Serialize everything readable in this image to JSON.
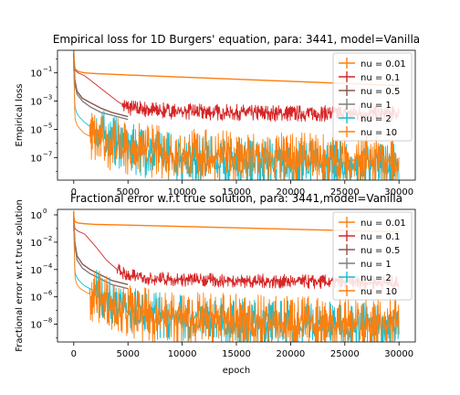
{
  "chart_data": [
    {
      "type": "line",
      "title": "Empirical loss for 1D Burgers' equation, para: 3441, model=Vanilla",
      "xlabel": "",
      "ylabel": "Empirical loss",
      "yscale": "log",
      "xlim": [
        -1500,
        31500
      ],
      "ylim_exp": [
        -8.6,
        0.6
      ],
      "x_ticks": [
        0,
        5000,
        10000,
        15000,
        20000,
        25000,
        30000
      ],
      "x_tick_labels": [
        "0",
        "5000",
        "10000",
        "15000",
        "20000",
        "25000",
        "30000"
      ],
      "y_ticks_exp": [
        -7,
        -5,
        -3,
        -1
      ],
      "y_tick_labels": [
        "10",
        "10",
        "10",
        "10"
      ],
      "y_tick_exps": [
        "−7",
        "−5",
        "−3",
        "−1"
      ],
      "legend": "upper right",
      "grid": false,
      "series": [
        {
          "name": "nu = 0.01",
          "color": "#ff7f0e",
          "x": [
            0,
            100,
            400,
            1000,
            2000,
            5000,
            10000,
            15000,
            20000,
            25000,
            30000
          ],
          "log10_y": [
            0.3,
            -0.7,
            -0.9,
            -1.0,
            -1.05,
            -1.15,
            -1.3,
            -1.45,
            -1.6,
            -1.75,
            -1.9
          ]
        },
        {
          "name": "nu = 0.1",
          "color": "#d62728",
          "x": [
            0,
            100,
            400,
            1000,
            2000,
            3000,
            4000,
            5000,
            8000,
            12000,
            16000,
            20000,
            25000,
            30000
          ],
          "log10_y": [
            0.2,
            -0.8,
            -1.0,
            -1.2,
            -1.8,
            -2.4,
            -3.0,
            -3.5,
            -3.7,
            -3.8,
            -3.85,
            -3.9,
            -3.9,
            -3.95
          ],
          "noise_from": 4500,
          "noise": 0.5
        },
        {
          "name": "nu = 0.5",
          "color": "#8c564b",
          "x": [
            0,
            100,
            300,
            800,
            1500,
            2500,
            3500,
            4500,
            5000
          ],
          "log10_y": [
            0.0,
            -1.5,
            -2.3,
            -2.8,
            -3.1,
            -3.5,
            -3.8,
            -4.0,
            -4.1
          ]
        },
        {
          "name": "nu = 1",
          "color": "#7f7f7f",
          "x": [
            0,
            100,
            300,
            800,
            1500,
            2500,
            3500,
            4500,
            5000
          ],
          "log10_y": [
            0.0,
            -1.8,
            -2.5,
            -3.0,
            -3.4,
            -3.8,
            -4.0,
            -4.2,
            -4.3
          ]
        },
        {
          "name": "nu = 2",
          "color": "#17becf",
          "x": [
            0,
            100,
            300,
            600,
            1000,
            2000,
            3000,
            4000,
            5000,
            7000,
            10000,
            13000,
            16000,
            20000,
            25000,
            30000
          ],
          "log10_y": [
            -0.5,
            -3.4,
            -3.9,
            -4.2,
            -4.5,
            -5.1,
            -5.6,
            -6.0,
            -6.4,
            -6.8,
            -7.1,
            -7.3,
            -7.45,
            -7.55,
            -7.65,
            -7.7
          ],
          "noise_from": 2000,
          "noise": 1.5
        },
        {
          "name": "nu = 10",
          "color": "#ff7f0e",
          "x": [
            0,
            100,
            300,
            600,
            1000,
            2000,
            3000,
            4000,
            5000,
            7000,
            10000,
            13000,
            16000,
            20000,
            25000,
            30000
          ],
          "log10_y": [
            -0.3,
            -4.2,
            -4.7,
            -5.0,
            -5.3,
            -5.7,
            -6.0,
            -6.2,
            -6.4,
            -6.6,
            -6.8,
            -7.0,
            -7.1,
            -7.2,
            -7.3,
            -7.4
          ],
          "noise_from": 1500,
          "noise": 1.6
        }
      ]
    },
    {
      "type": "line",
      "title": "Fractional error w.r.t true solution, para: 3441,model=Vanilla",
      "xlabel": "epoch",
      "ylabel": "Fractional error w.r.t true solution",
      "yscale": "log",
      "xlim": [
        -1500,
        31500
      ],
      "ylim_exp": [
        -9.3,
        0.4
      ],
      "x_ticks": [
        0,
        5000,
        10000,
        15000,
        20000,
        25000,
        30000
      ],
      "x_tick_labels": [
        "0",
        "5000",
        "10000",
        "15000",
        "20000",
        "25000",
        "30000"
      ],
      "y_ticks_exp": [
        -8,
        -6,
        -4,
        -2,
        0
      ],
      "y_tick_labels": [
        "10",
        "10",
        "10",
        "10",
        "10"
      ],
      "y_tick_exps": [
        "−8",
        "−6",
        "−4",
        "−2",
        "0"
      ],
      "legend": "upper right",
      "grid": false,
      "series": [
        {
          "name": "nu = 0.01",
          "color": "#ff7f0e",
          "x": [
            0,
            100,
            400,
            1000,
            2000,
            5000,
            10000,
            15000,
            20000,
            25000,
            30000
          ],
          "log10_y": [
            -0.1,
            -0.5,
            -0.6,
            -0.65,
            -0.7,
            -0.75,
            -0.85,
            -0.95,
            -1.05,
            -1.15,
            -1.25
          ]
        },
        {
          "name": "nu = 0.1",
          "color": "#d62728",
          "x": [
            0,
            100,
            400,
            1000,
            2000,
            3000,
            4000,
            5000,
            8000,
            12000,
            16000,
            20000,
            25000,
            30000
          ],
          "log10_y": [
            -0.2,
            -1.0,
            -1.2,
            -1.4,
            -2.3,
            -3.3,
            -4.0,
            -4.5,
            -4.7,
            -4.8,
            -4.85,
            -4.9,
            -4.95,
            -5.0
          ],
          "noise_from": 4000,
          "noise": 0.45
        },
        {
          "name": "nu = 0.5",
          "color": "#8c564b",
          "x": [
            0,
            100,
            300,
            800,
            1500,
            2500,
            3500,
            4500,
            5000
          ],
          "log10_y": [
            -0.5,
            -2.0,
            -3.0,
            -3.6,
            -4.0,
            -4.4,
            -4.8,
            -5.0,
            -5.1
          ]
        },
        {
          "name": "nu = 1",
          "color": "#7f7f7f",
          "x": [
            0,
            100,
            300,
            800,
            1500,
            2500,
            3500,
            4500,
            5000
          ],
          "log10_y": [
            -0.5,
            -2.2,
            -3.3,
            -3.9,
            -4.3,
            -4.7,
            -5.1,
            -5.3,
            -5.4
          ]
        },
        {
          "name": "nu = 2",
          "color": "#17becf",
          "x": [
            0,
            100,
            300,
            600,
            1000,
            2000,
            3000,
            4000,
            5000,
            7000,
            10000,
            13000,
            16000,
            20000,
            25000,
            30000
          ],
          "log10_y": [
            -0.8,
            -4.2,
            -4.6,
            -4.9,
            -5.2,
            -5.6,
            -6.1,
            -6.6,
            -7.0,
            -7.4,
            -7.7,
            -7.9,
            -8.0,
            -8.1,
            -8.2,
            -8.25
          ],
          "noise_from": 2000,
          "noise": 1.5
        },
        {
          "name": "nu = 10",
          "color": "#ff7f0e",
          "x": [
            0,
            100,
            300,
            600,
            1000,
            2000,
            3000,
            4000,
            5000,
            7000,
            10000,
            13000,
            16000,
            20000,
            25000,
            30000
          ],
          "log10_y": [
            -0.5,
            -4.6,
            -5.1,
            -5.4,
            -5.6,
            -6.0,
            -6.4,
            -6.8,
            -7.2,
            -7.5,
            -7.7,
            -7.8,
            -7.9,
            -8.0,
            -8.05,
            -8.1
          ],
          "noise_from": 1500,
          "noise": 1.7
        }
      ]
    }
  ]
}
